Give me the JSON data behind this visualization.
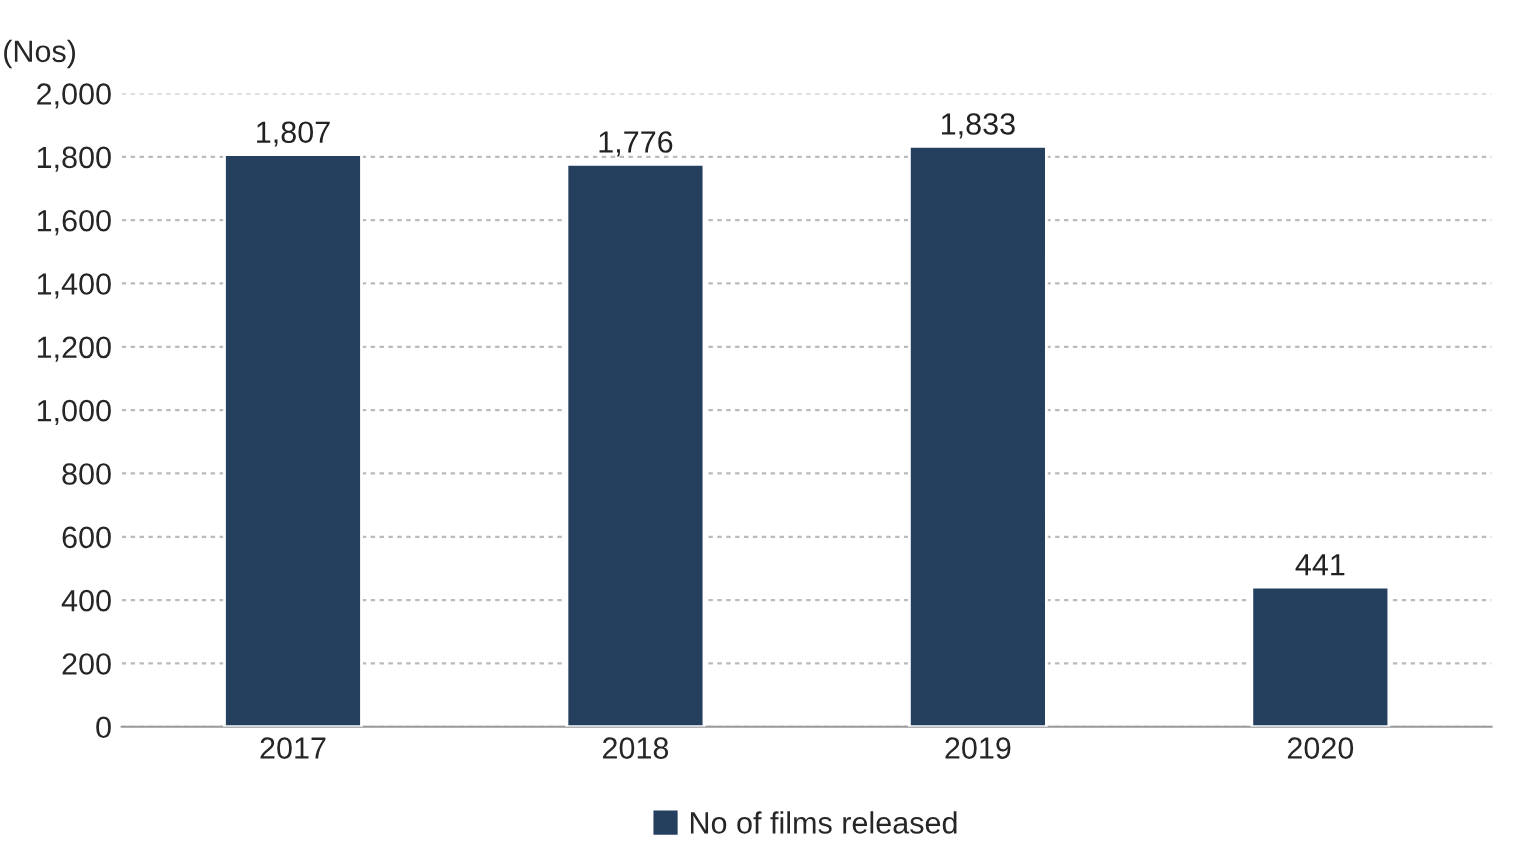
{
  "chart_data": {
    "type": "bar",
    "ylabel": "(Nos)",
    "categories": [
      "2017",
      "2018",
      "2019",
      "2020"
    ],
    "series": [
      {
        "name": "No of films released",
        "color": "#253f5f",
        "values": [
          1807,
          1776,
          1833,
          441
        ],
        "value_labels": [
          "1,807",
          "1,776",
          "1,833",
          "441"
        ]
      }
    ],
    "ylim": [
      0,
      2000
    ],
    "yticks": [
      0,
      200,
      400,
      600,
      800,
      {
        "value": 1000,
        "label": "1,000"
      },
      {
        "value": 1200,
        "label": "1,200"
      },
      {
        "value": 1400,
        "label": "1,400"
      },
      {
        "value": 1600,
        "label": "1,600"
      },
      {
        "value": 1800,
        "label": "1,800"
      },
      {
        "value": 2000,
        "label": "2,000"
      }
    ],
    "grid": "y",
    "legend": "bottom"
  }
}
